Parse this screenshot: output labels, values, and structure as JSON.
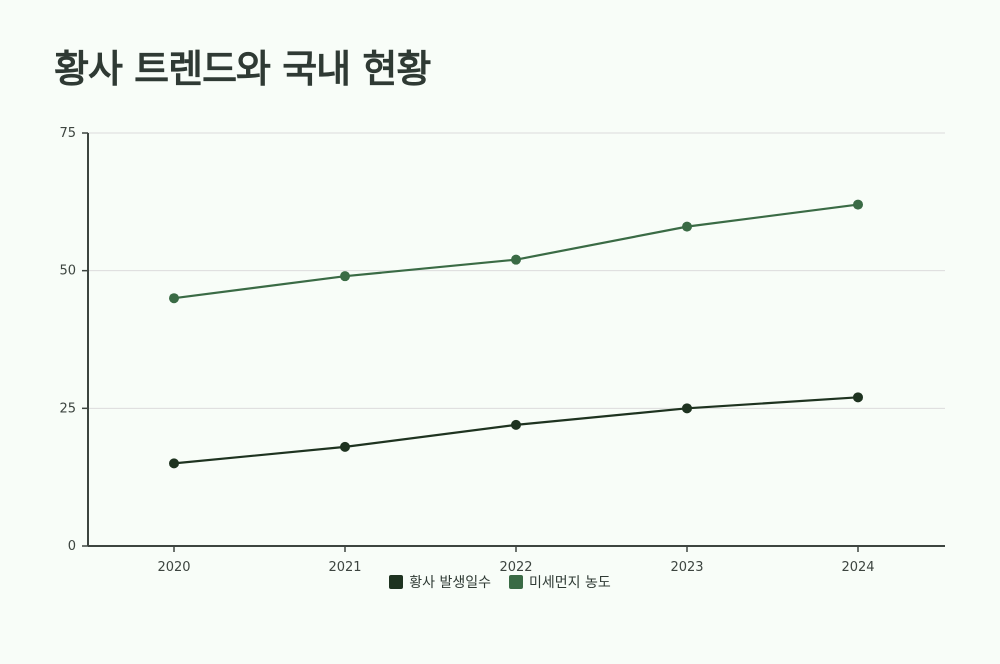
{
  "chart_data": {
    "type": "line",
    "title": "황사 트렌드와 국내 현황",
    "x": [
      "2020",
      "2021",
      "2022",
      "2023",
      "2024"
    ],
    "ylim": [
      0,
      75
    ],
    "yticks": [
      0,
      25,
      50,
      75
    ],
    "grid": true,
    "legend_position": "bottom-center",
    "series": [
      {
        "name": "황사 발생일수",
        "color": "#1e3320",
        "values": [
          15,
          18,
          22,
          25,
          27
        ]
      },
      {
        "name": "미세먼지 농도",
        "color": "#3a6b45",
        "values": [
          45,
          49,
          52,
          58,
          62
        ]
      }
    ]
  }
}
